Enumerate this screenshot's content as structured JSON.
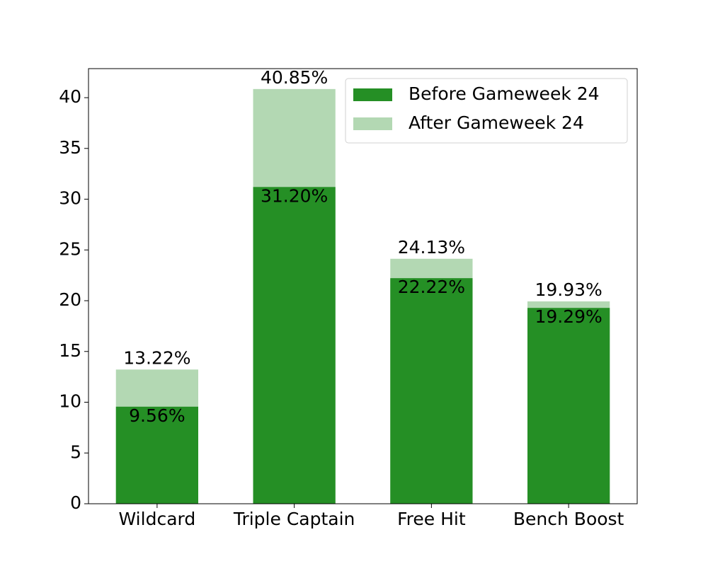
{
  "chart_data": {
    "type": "bar",
    "overlay": true,
    "categories": [
      "Wildcard",
      "Triple Captain",
      "Free Hit",
      "Bench Boost"
    ],
    "series": [
      {
        "name": "Before Gameweek 24",
        "color": "#258f25",
        "values": [
          9.56,
          31.2,
          22.22,
          19.29
        ],
        "value_labels": [
          "9.56%",
          "31.20%",
          "22.22%",
          "19.29%"
        ]
      },
      {
        "name": "After Gameweek 24",
        "color": "#b3d8b3",
        "values": [
          13.22,
          40.85,
          24.13,
          19.93
        ],
        "value_labels": [
          "13.22%",
          "40.85%",
          "24.13%",
          "19.93%"
        ]
      }
    ],
    "ylim": [
      0,
      42.86
    ],
    "yticks": [
      0,
      5,
      10,
      15,
      20,
      25,
      30,
      35,
      40
    ],
    "legend": "upper right"
  }
}
